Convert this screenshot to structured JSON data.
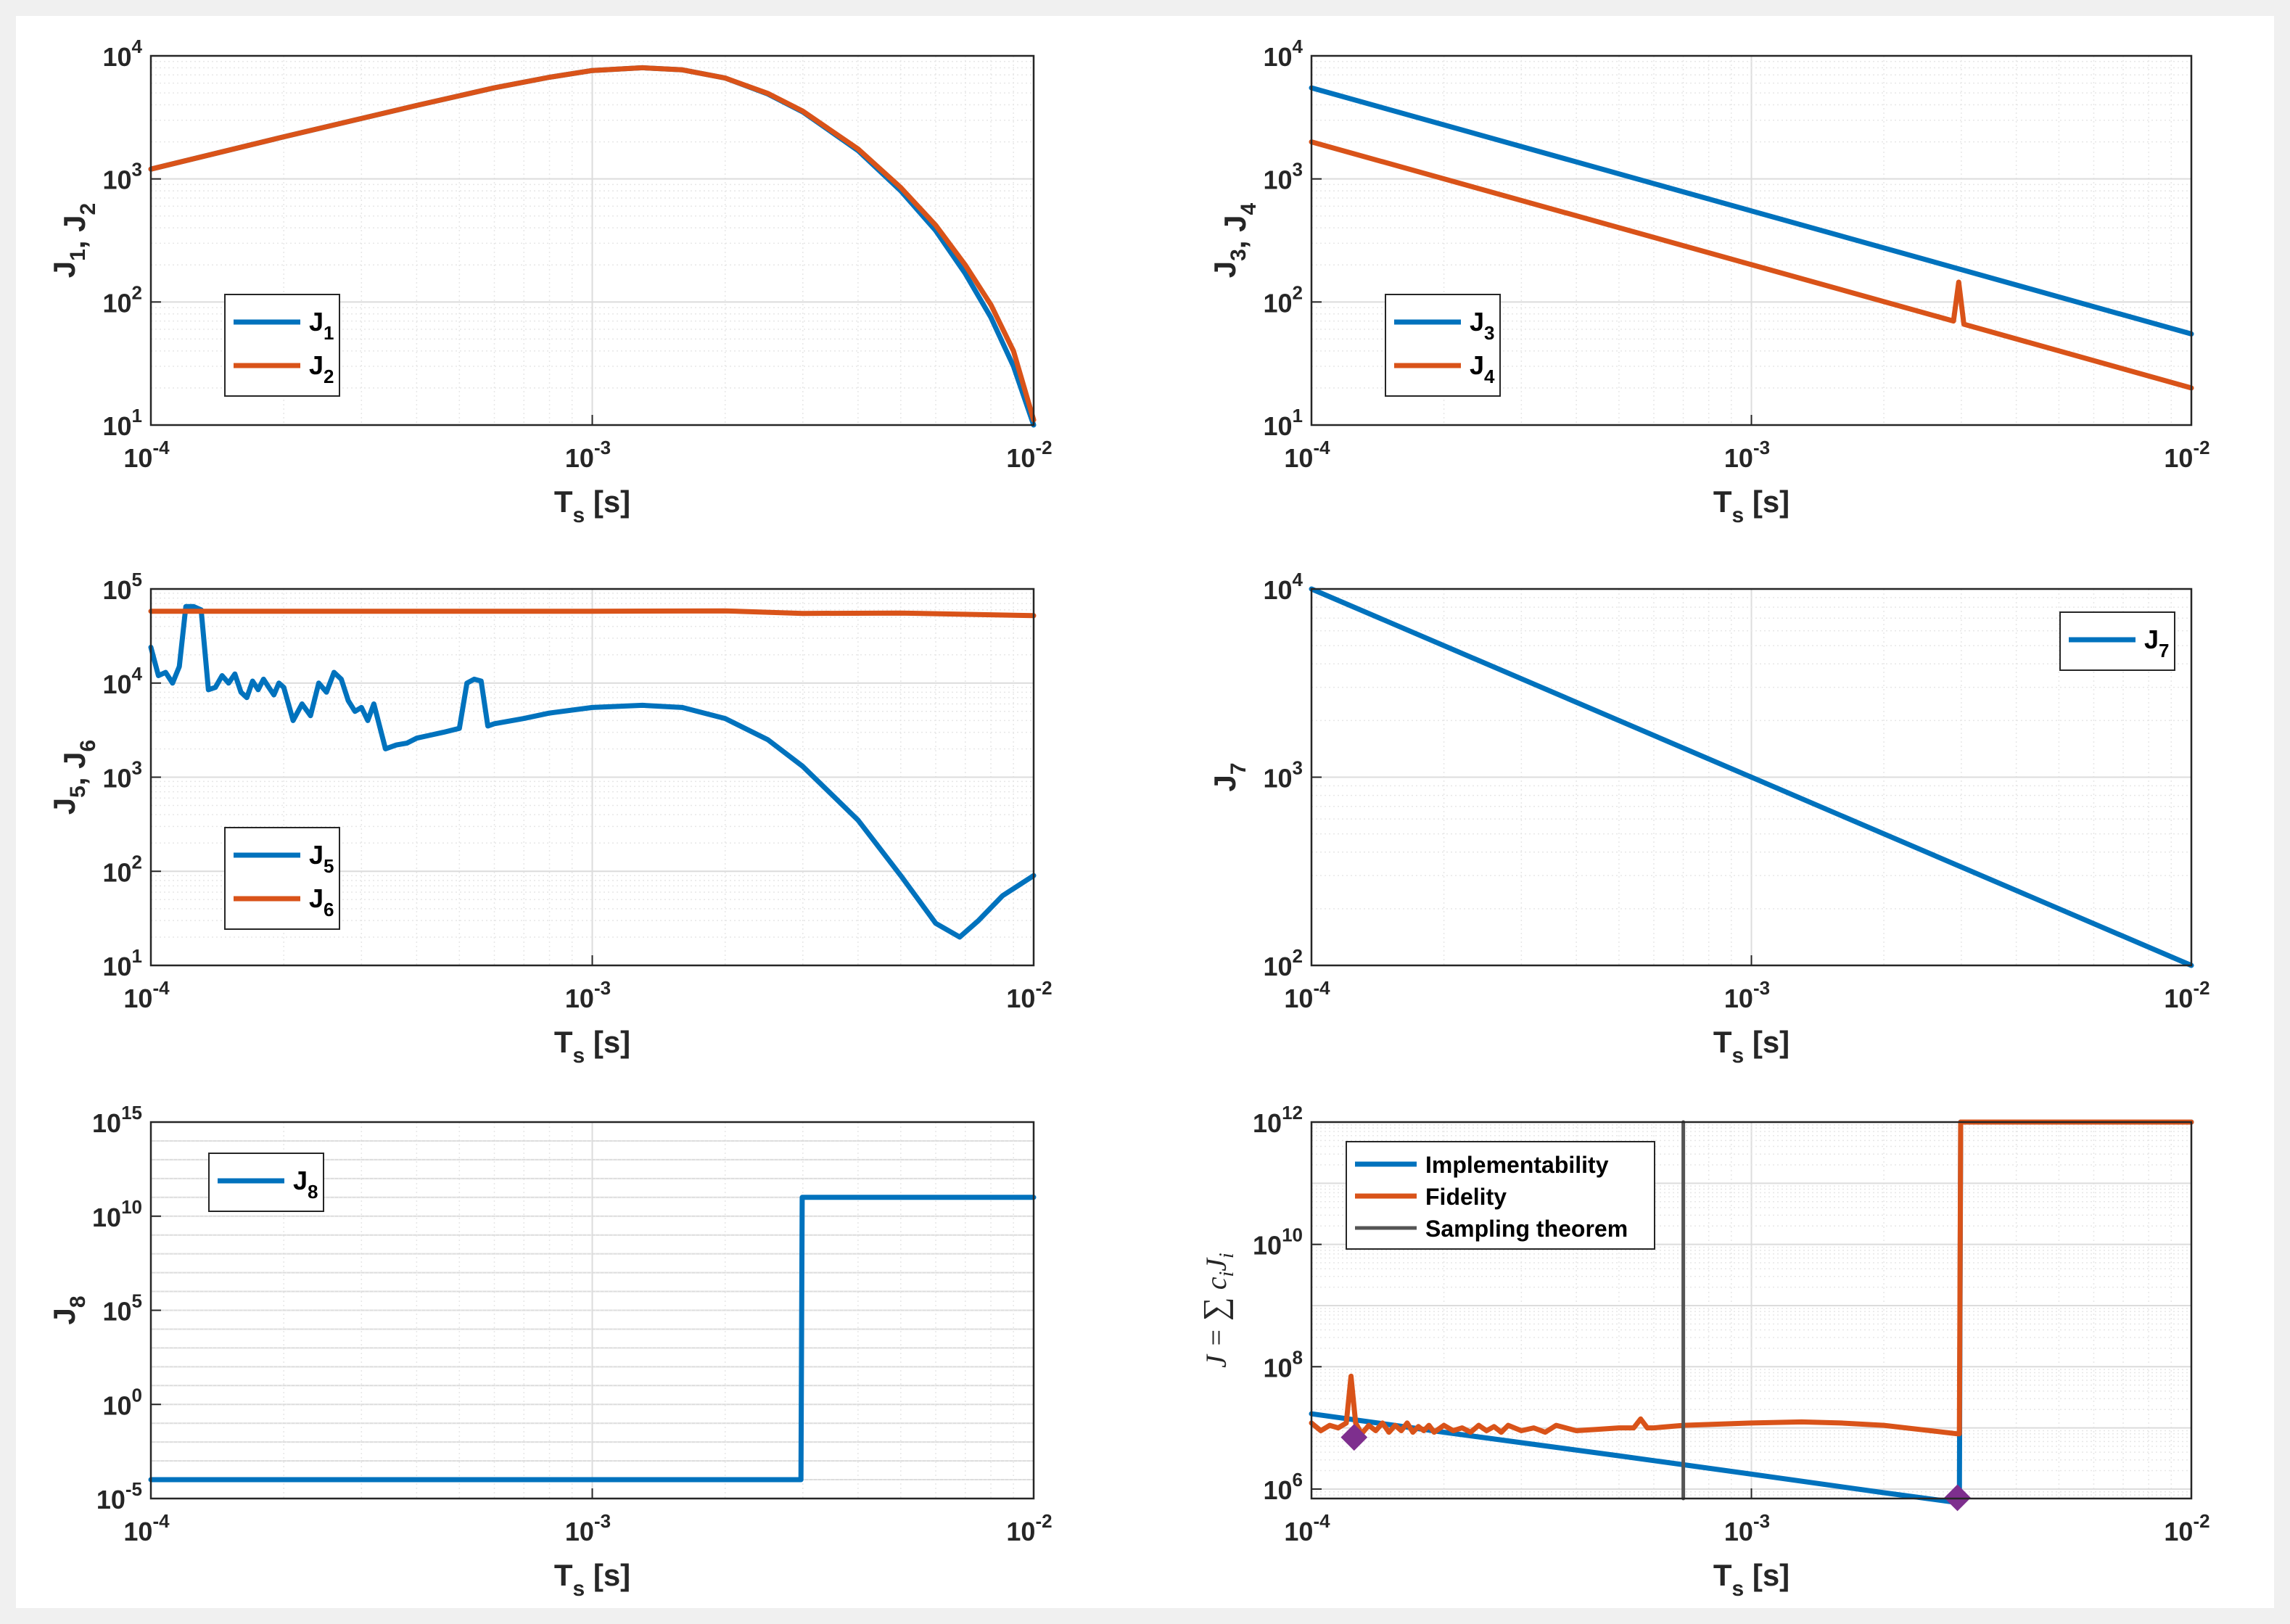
{
  "colors": {
    "blue": "#0072BD",
    "orange": "#D95319",
    "gray": "#555555",
    "purple": "#7E2F8E",
    "grid_major": "#dcdcdc",
    "grid_minor": "#e7e7e7",
    "background": "#f0f0f0"
  },
  "chart_data": [
    {
      "id": "J1J2",
      "type": "line",
      "xscale": "log",
      "yscale": "log",
      "xlim": [
        0.0001,
        0.01
      ],
      "ylim": [
        10,
        10000
      ],
      "xlabel": {
        "base": "T",
        "sub": "s",
        "unit": "[s]"
      },
      "ylabel": [
        {
          "t": "J",
          "s": "1"
        },
        {
          "t": ", J",
          "s": "2"
        }
      ],
      "xticks": [
        {
          "base": "10",
          "exp": "-4"
        },
        {
          "base": "10",
          "exp": "-3"
        },
        {
          "base": "10",
          "exp": "-2"
        }
      ],
      "yticks": [
        {
          "base": "10",
          "exp": "1"
        },
        {
          "base": "10",
          "exp": "2"
        },
        {
          "base": "10",
          "exp": "3"
        },
        {
          "base": "10",
          "exp": "4"
        }
      ],
      "legend": {
        "position": "bottom-left",
        "entries": [
          {
            "base": "J",
            "sub": "1"
          },
          {
            "base": "J",
            "sub": "2"
          }
        ]
      },
      "series": [
        {
          "name": "J1",
          "color": "blue",
          "x": [
            0.0001,
            0.0002,
            0.0004,
            0.0006,
            0.0008,
            0.001,
            0.0013,
            0.0016,
            0.002,
            0.0025,
            0.003,
            0.004,
            0.005,
            0.006,
            0.007,
            0.008,
            0.009,
            0.01
          ],
          "y": [
            1200,
            2200,
            3950,
            5500,
            6700,
            7600,
            8000,
            7700,
            6600,
            4900,
            3500,
            1700,
            800,
            380,
            170,
            75,
            30,
            10
          ]
        },
        {
          "name": "J2",
          "color": "orange",
          "x": [
            0.0001,
            0.0002,
            0.0004,
            0.0006,
            0.0008,
            0.001,
            0.0013,
            0.0016,
            0.002,
            0.0025,
            0.003,
            0.004,
            0.005,
            0.006,
            0.007,
            0.008,
            0.009,
            0.01
          ],
          "y": [
            1200,
            2200,
            3950,
            5500,
            6700,
            7600,
            8000,
            7700,
            6600,
            4950,
            3550,
            1750,
            850,
            420,
            200,
            95,
            40,
            11
          ]
        }
      ]
    },
    {
      "id": "J3J4",
      "type": "line",
      "xscale": "log",
      "yscale": "log",
      "xlim": [
        0.0001,
        0.01
      ],
      "ylim": [
        10,
        10000
      ],
      "xlabel": {
        "base": "T",
        "sub": "s",
        "unit": "[s]"
      },
      "ylabel": [
        {
          "t": "J",
          "s": "3"
        },
        {
          "t": ", J",
          "s": "4"
        }
      ],
      "xticks": [
        {
          "base": "10",
          "exp": "-4"
        },
        {
          "base": "10",
          "exp": "-3"
        },
        {
          "base": "10",
          "exp": "-2"
        }
      ],
      "yticks": [
        {
          "base": "10",
          "exp": "1"
        },
        {
          "base": "10",
          "exp": "2"
        },
        {
          "base": "10",
          "exp": "3"
        },
        {
          "base": "10",
          "exp": "4"
        }
      ],
      "legend": {
        "position": "bottom-left",
        "entries": [
          {
            "base": "J",
            "sub": "3"
          },
          {
            "base": "J",
            "sub": "4"
          }
        ]
      },
      "series": [
        {
          "name": "J3",
          "color": "blue",
          "x": [
            0.0001,
            0.01
          ],
          "y": [
            5500,
            55
          ]
        },
        {
          "name": "J4",
          "color": "orange",
          "x": [
            0.0001,
            0.00288,
            0.00296,
            0.00304,
            0.01
          ],
          "y": [
            2000,
            70,
            145,
            66,
            20
          ]
        }
      ]
    },
    {
      "id": "J5J6",
      "type": "line",
      "xscale": "log",
      "yscale": "log",
      "xlim": [
        0.0001,
        0.01
      ],
      "ylim": [
        10,
        100000
      ],
      "xlabel": {
        "base": "T",
        "sub": "s",
        "unit": "[s]"
      },
      "ylabel": [
        {
          "t": "J",
          "s": "5"
        },
        {
          "t": ", J",
          "s": "6"
        }
      ],
      "xticks": [
        {
          "base": "10",
          "exp": "-4"
        },
        {
          "base": "10",
          "exp": "-3"
        },
        {
          "base": "10",
          "exp": "-2"
        }
      ],
      "yticks": [
        {
          "base": "10",
          "exp": "1"
        },
        {
          "base": "10",
          "exp": "2"
        },
        {
          "base": "10",
          "exp": "3"
        },
        {
          "base": "10",
          "exp": "4"
        },
        {
          "base": "10",
          "exp": "5"
        }
      ],
      "legend": {
        "position": "bottom-left",
        "entries": [
          {
            "base": "J",
            "sub": "5"
          },
          {
            "base": "J",
            "sub": "6"
          }
        ]
      },
      "series": [
        {
          "name": "J5",
          "color": "blue",
          "x": [
            0.0001,
            0.000104,
            0.000108,
            0.000112,
            0.000116,
            0.00012,
            0.000125,
            0.00013,
            0.000135,
            0.00014,
            0.000145,
            0.00015,
            0.000155,
            0.00016,
            0.000165,
            0.00017,
            0.000175,
            0.00018,
            0.000185,
            0.00019,
            0.000195,
            0.0002,
            0.00021,
            0.00022,
            0.00023,
            0.00024,
            0.00025,
            0.00026,
            0.00027,
            0.00028,
            0.00029,
            0.0003,
            0.00031,
            0.00032,
            0.00034,
            0.00036,
            0.00038,
            0.0004,
            0.00043,
            0.00046,
            0.0005,
            0.00052,
            0.00054,
            0.00056,
            0.00058,
            0.0006,
            0.0007,
            0.0008,
            0.001,
            0.0013,
            0.0016,
            0.002,
            0.0025,
            0.003,
            0.004,
            0.005,
            0.006,
            0.0068,
            0.0075,
            0.0085,
            0.01
          ],
          "y": [
            24000,
            12000,
            13000,
            10000,
            15000,
            65000,
            65000,
            60000,
            8500,
            9000,
            12000,
            10000,
            12500,
            8000,
            7000,
            10500,
            8500,
            11000,
            9000,
            7500,
            10000,
            9000,
            4000,
            6000,
            4500,
            10000,
            8000,
            13000,
            11000,
            6500,
            5000,
            5500,
            4000,
            6000,
            2000,
            2200,
            2300,
            2600,
            2800,
            3000,
            3300,
            10000,
            11000,
            10500,
            3500,
            3700,
            4200,
            4800,
            5500,
            5800,
            5500,
            4200,
            2500,
            1300,
            350,
            90,
            28,
            20,
            30,
            55,
            90
          ]
        },
        {
          "name": "J6",
          "color": "orange",
          "x": [
            0.0001,
            0.0003,
            0.001,
            0.002,
            0.003,
            0.005,
            0.01
          ],
          "y": [
            58000,
            58000,
            58000,
            58500,
            55000,
            55500,
            52000
          ]
        }
      ]
    },
    {
      "id": "J7",
      "type": "line",
      "xscale": "log",
      "yscale": "log",
      "xlim": [
        0.0001,
        0.01
      ],
      "ylim": [
        100,
        10000
      ],
      "xlabel": {
        "base": "T",
        "sub": "s",
        "unit": "[s]"
      },
      "ylabel": [
        {
          "t": "J",
          "s": "7"
        }
      ],
      "xticks": [
        {
          "base": "10",
          "exp": "-4"
        },
        {
          "base": "10",
          "exp": "-3"
        },
        {
          "base": "10",
          "exp": "-2"
        }
      ],
      "yticks": [
        {
          "base": "10",
          "exp": "2"
        },
        {
          "base": "10",
          "exp": "3"
        },
        {
          "base": "10",
          "exp": "4"
        }
      ],
      "legend": {
        "position": "top-right",
        "entries": [
          {
            "base": "J",
            "sub": "7"
          }
        ]
      },
      "series": [
        {
          "name": "J7",
          "color": "blue",
          "x": [
            0.0001,
            0.01
          ],
          "y": [
            10000,
            100
          ]
        }
      ]
    },
    {
      "id": "J8",
      "type": "line",
      "xscale": "log",
      "yscale": "log",
      "xlim": [
        0.0001,
        0.01
      ],
      "ylim": [
        1e-05,
        1000000000000000.0
      ],
      "xlabel": {
        "base": "T",
        "sub": "s",
        "unit": "[s]"
      },
      "ylabel": [
        {
          "t": "J",
          "s": "8"
        }
      ],
      "xticks": [
        {
          "base": "10",
          "exp": "-4"
        },
        {
          "base": "10",
          "exp": "-3"
        },
        {
          "base": "10",
          "exp": "-2"
        }
      ],
      "yticks": [
        {
          "base": "10",
          "exp": "-5"
        },
        {
          "base": "10",
          "exp": "0"
        },
        {
          "base": "10",
          "exp": "5"
        },
        {
          "base": "10",
          "exp": "10"
        },
        {
          "base": "10",
          "exp": "15"
        }
      ],
      "legend": {
        "position": "top-left",
        "entries": [
          {
            "base": "J",
            "sub": "8"
          }
        ]
      },
      "series": [
        {
          "name": "J8",
          "color": "blue",
          "x": [
            0.0001,
            0.00297,
            0.00299,
            0.01
          ],
          "y": [
            0.0001,
            0.0001,
            100000000000.0,
            100000000000.0
          ]
        }
      ]
    },
    {
      "id": "Jtotal",
      "type": "line",
      "xscale": "log",
      "yscale": "log",
      "xlim": [
        0.0001,
        0.01
      ],
      "ylim": [
        700000,
        1000000000000.0
      ],
      "xlabel": {
        "base": "T",
        "sub": "s",
        "unit": "[s]"
      },
      "ylabel_math": "J = ∑ c_i J_i",
      "xticks": [
        {
          "base": "10",
          "exp": "-4"
        },
        {
          "base": "10",
          "exp": "-3"
        },
        {
          "base": "10",
          "exp": "-2"
        }
      ],
      "yticks": [
        {
          "base": "10",
          "exp": "6"
        },
        {
          "base": "10",
          "exp": "8"
        },
        {
          "base": "10",
          "exp": "10"
        },
        {
          "base": "10",
          "exp": "12"
        }
      ],
      "legend": {
        "position": "top-left",
        "entries": [
          {
            "text": "Implementability"
          },
          {
            "text": "Fidelity"
          },
          {
            "text": "Sampling theorem"
          }
        ]
      },
      "series": [
        {
          "name": "Implementability",
          "color": "blue",
          "x": [
            0.0001,
            0.0002,
            0.0005,
            0.001,
            0.002,
            0.00294,
            0.00297,
            0.00299,
            0.01
          ],
          "y": [
            17000000,
            8500000,
            3500000,
            1750000,
            870000,
            600000,
            600000,
            1000000000000.0,
            1000000000000.0
          ]
        },
        {
          "name": "Fidelity",
          "color": "orange",
          "x": [
            0.0001,
            0.000105,
            0.00011,
            0.000115,
            0.00012,
            0.000123,
            0.000126,
            0.00013,
            0.000135,
            0.00014,
            0.000145,
            0.00015,
            0.000155,
            0.00016,
            0.000165,
            0.00017,
            0.000175,
            0.00018,
            0.000185,
            0.00019,
            0.0002,
            0.00021,
            0.00022,
            0.00023,
            0.00024,
            0.00025,
            0.00026,
            0.00027,
            0.00028,
            0.0003,
            0.00032,
            0.00034,
            0.00036,
            0.0004,
            0.00045,
            0.0005,
            0.00054,
            0.00056,
            0.00058,
            0.0006,
            0.0007,
            0.001,
            0.0013,
            0.0016,
            0.002,
            0.00294,
            0.00297,
            0.00299,
            0.01
          ],
          "y": [
            12000000,
            9000000,
            11000000,
            10000000,
            12000000,
            70000000,
            12000000,
            8000000,
            11000000,
            9000000,
            12000000,
            8500000,
            11000000,
            9000000,
            12000000,
            8500000,
            10500000,
            9000000,
            11000000,
            8500000,
            11000000,
            9000000,
            10000000,
            8500000,
            11000000,
            9000000,
            10500000,
            8500000,
            11000000,
            9000000,
            10000000,
            8500000,
            11000000,
            9000000,
            9500000,
            10000000,
            10000000,
            14000000,
            10000000,
            10000000,
            11000000,
            12000000,
            12500000,
            12000000,
            11000000,
            8000000,
            8000000,
            1000000000000.0,
            1000000000000.0
          ]
        },
        {
          "name": "Sampling theorem",
          "color": "gray",
          "x": [
            0.0007,
            0.0007
          ],
          "y": [
            700000,
            1000000000000.0
          ]
        }
      ],
      "markers": [
        {
          "name": "optimum-fidelity",
          "x": 0.000125,
          "y": 7000000,
          "color": "purple",
          "shape": "diamond"
        },
        {
          "name": "optimum-implementability",
          "x": 0.00294,
          "y": 720000,
          "color": "purple",
          "shape": "diamond"
        }
      ]
    }
  ]
}
